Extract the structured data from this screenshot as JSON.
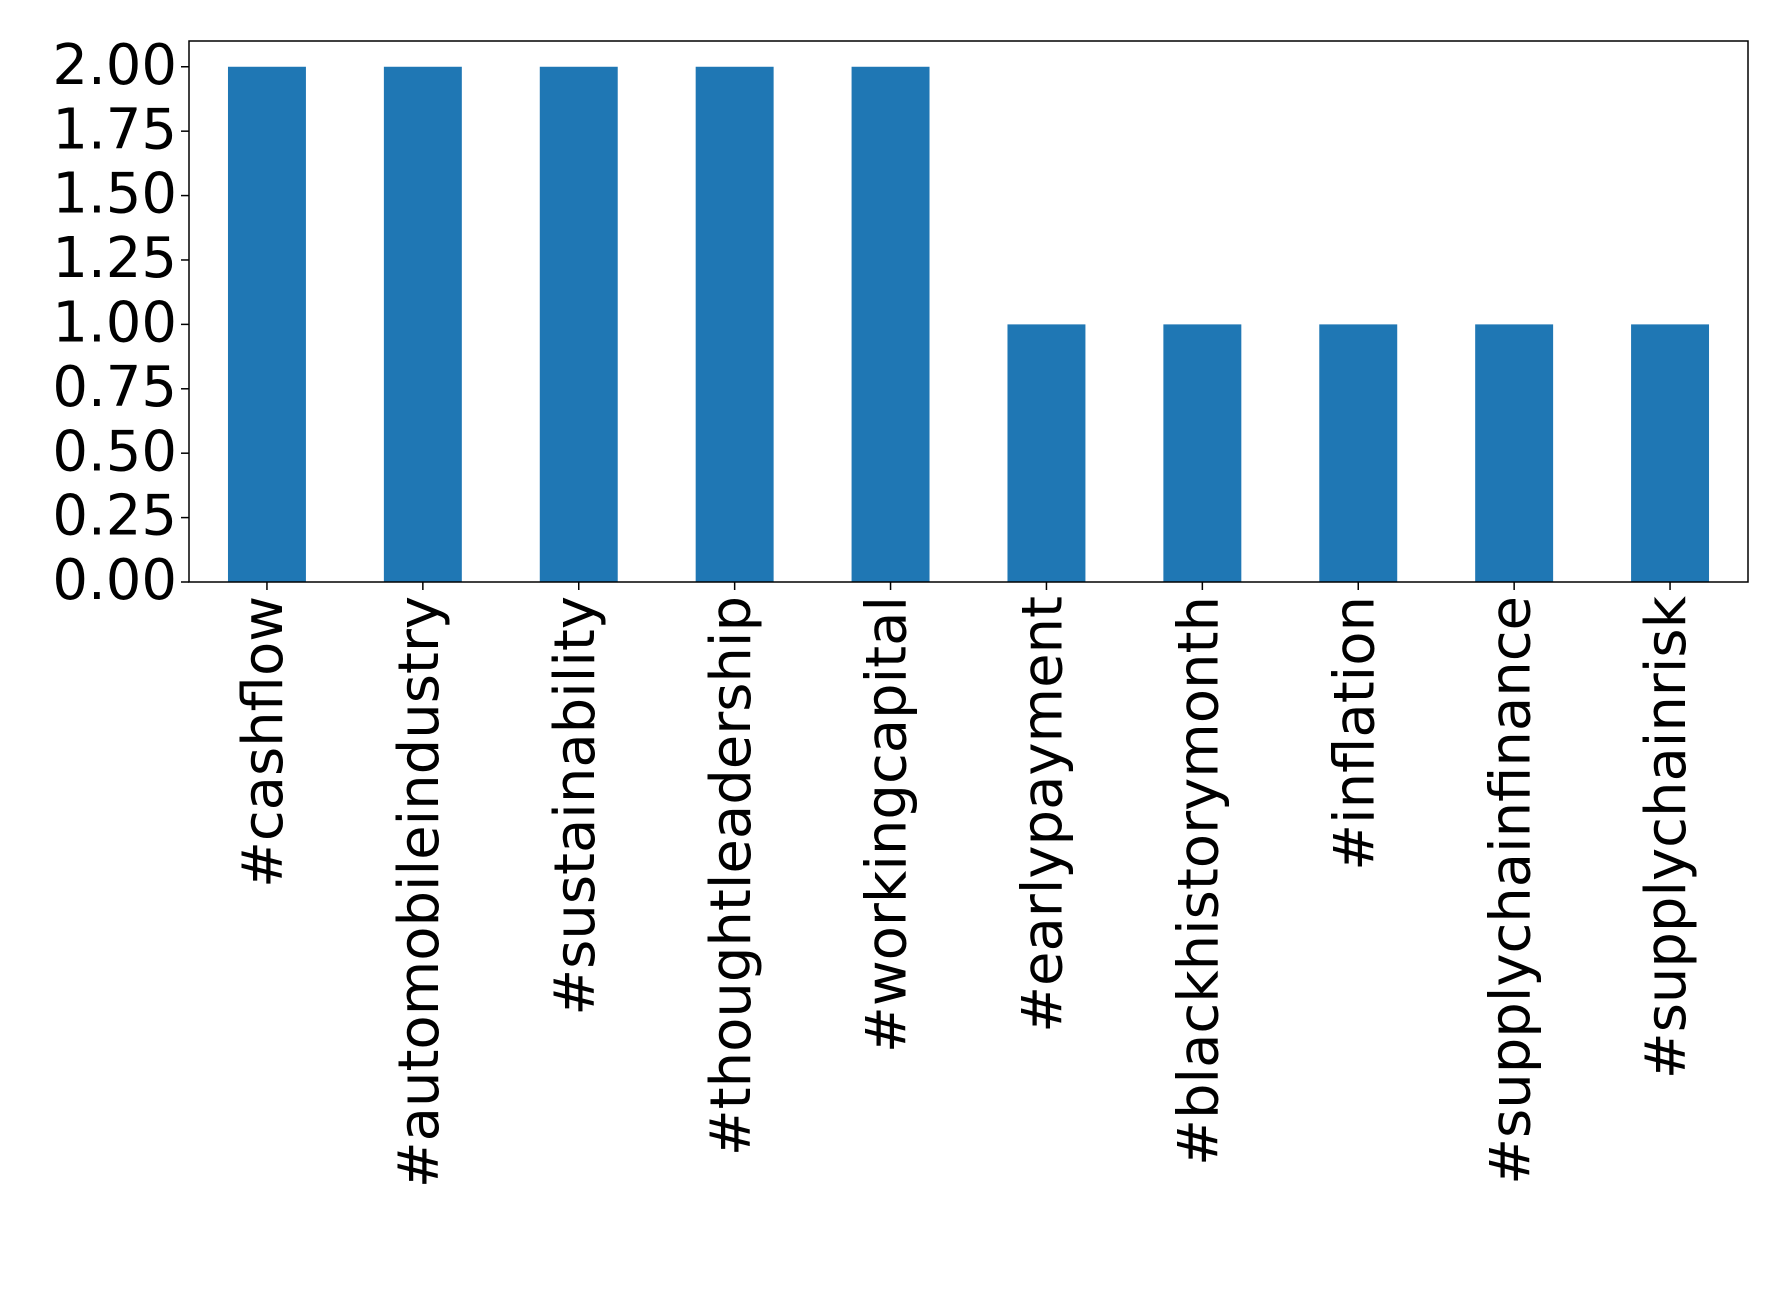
{
  "chart_data": {
    "type": "bar",
    "categories": [
      "#cashflow",
      "#automobileindustry",
      "#sustainability",
      "#thoughtleadership",
      "#workingcapital",
      "#earlypayment",
      "#blackhistorymonth",
      "#inflation",
      "#supplychainfinance",
      "#supplychainrisk"
    ],
    "values": [
      2,
      2,
      2,
      2,
      2,
      1,
      1,
      1,
      1,
      1
    ],
    "color": "#1f77b4",
    "ylim": [
      0,
      2.1
    ],
    "yticks": [
      {
        "value": 0,
        "label": "0.00"
      },
      {
        "value": 0.25,
        "label": "0.25"
      },
      {
        "value": 0.5,
        "label": "0.50"
      },
      {
        "value": 0.75,
        "label": "0.75"
      },
      {
        "value": 1,
        "label": "1.00"
      },
      {
        "value": 1.25,
        "label": "1.25"
      },
      {
        "value": 1.5,
        "label": "1.50"
      },
      {
        "value": 1.75,
        "label": "1.75"
      },
      {
        "value": 2,
        "label": "2.00"
      }
    ],
    "grid": false
  }
}
